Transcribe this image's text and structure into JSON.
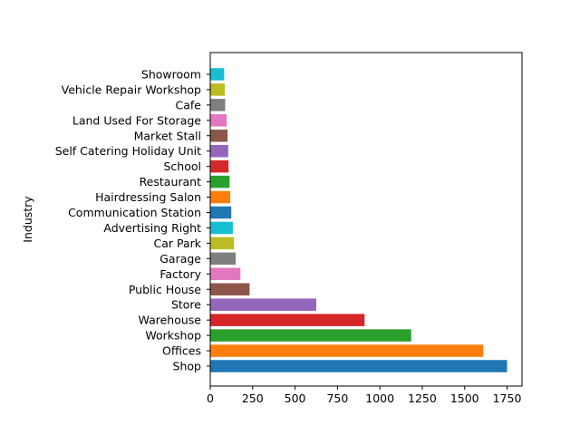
{
  "chart_data": {
    "type": "bar",
    "orientation": "horizontal",
    "title": "",
    "xlabel": "",
    "ylabel": "Industry",
    "xlim": [
      0,
      1838
    ],
    "xticks": [
      0,
      250,
      500,
      750,
      1000,
      1250,
      1500,
      1750
    ],
    "grid": false,
    "categories": [
      "Shop",
      "Offices",
      "Workshop",
      "Warehouse",
      "Store",
      "Public House",
      "Factory",
      "Garage",
      "Car Park",
      "Advertising Right",
      "Communication Station",
      "Hairdressing Salon",
      "Restaurant",
      "School",
      "Self Catering Holiday Unit",
      "Market Stall",
      "Land Used For Storage",
      "Cafe",
      "Vehicle Repair Workshop",
      "Showroom"
    ],
    "values": [
      1750,
      1610,
      1185,
      910,
      625,
      232,
      178,
      150,
      140,
      133,
      124,
      118,
      114,
      108,
      106,
      102,
      97,
      88,
      86,
      82
    ],
    "colors": [
      "#1f77b4",
      "#ff7f0e",
      "#2ca02c",
      "#d62728",
      "#9467bd",
      "#8c564b",
      "#e377c2",
      "#7f7f7f",
      "#bcbd22",
      "#17becf",
      "#1f77b4",
      "#ff7f0e",
      "#2ca02c",
      "#d62728",
      "#9467bd",
      "#8c564b",
      "#e377c2",
      "#7f7f7f",
      "#bcbd22",
      "#17becf"
    ]
  }
}
